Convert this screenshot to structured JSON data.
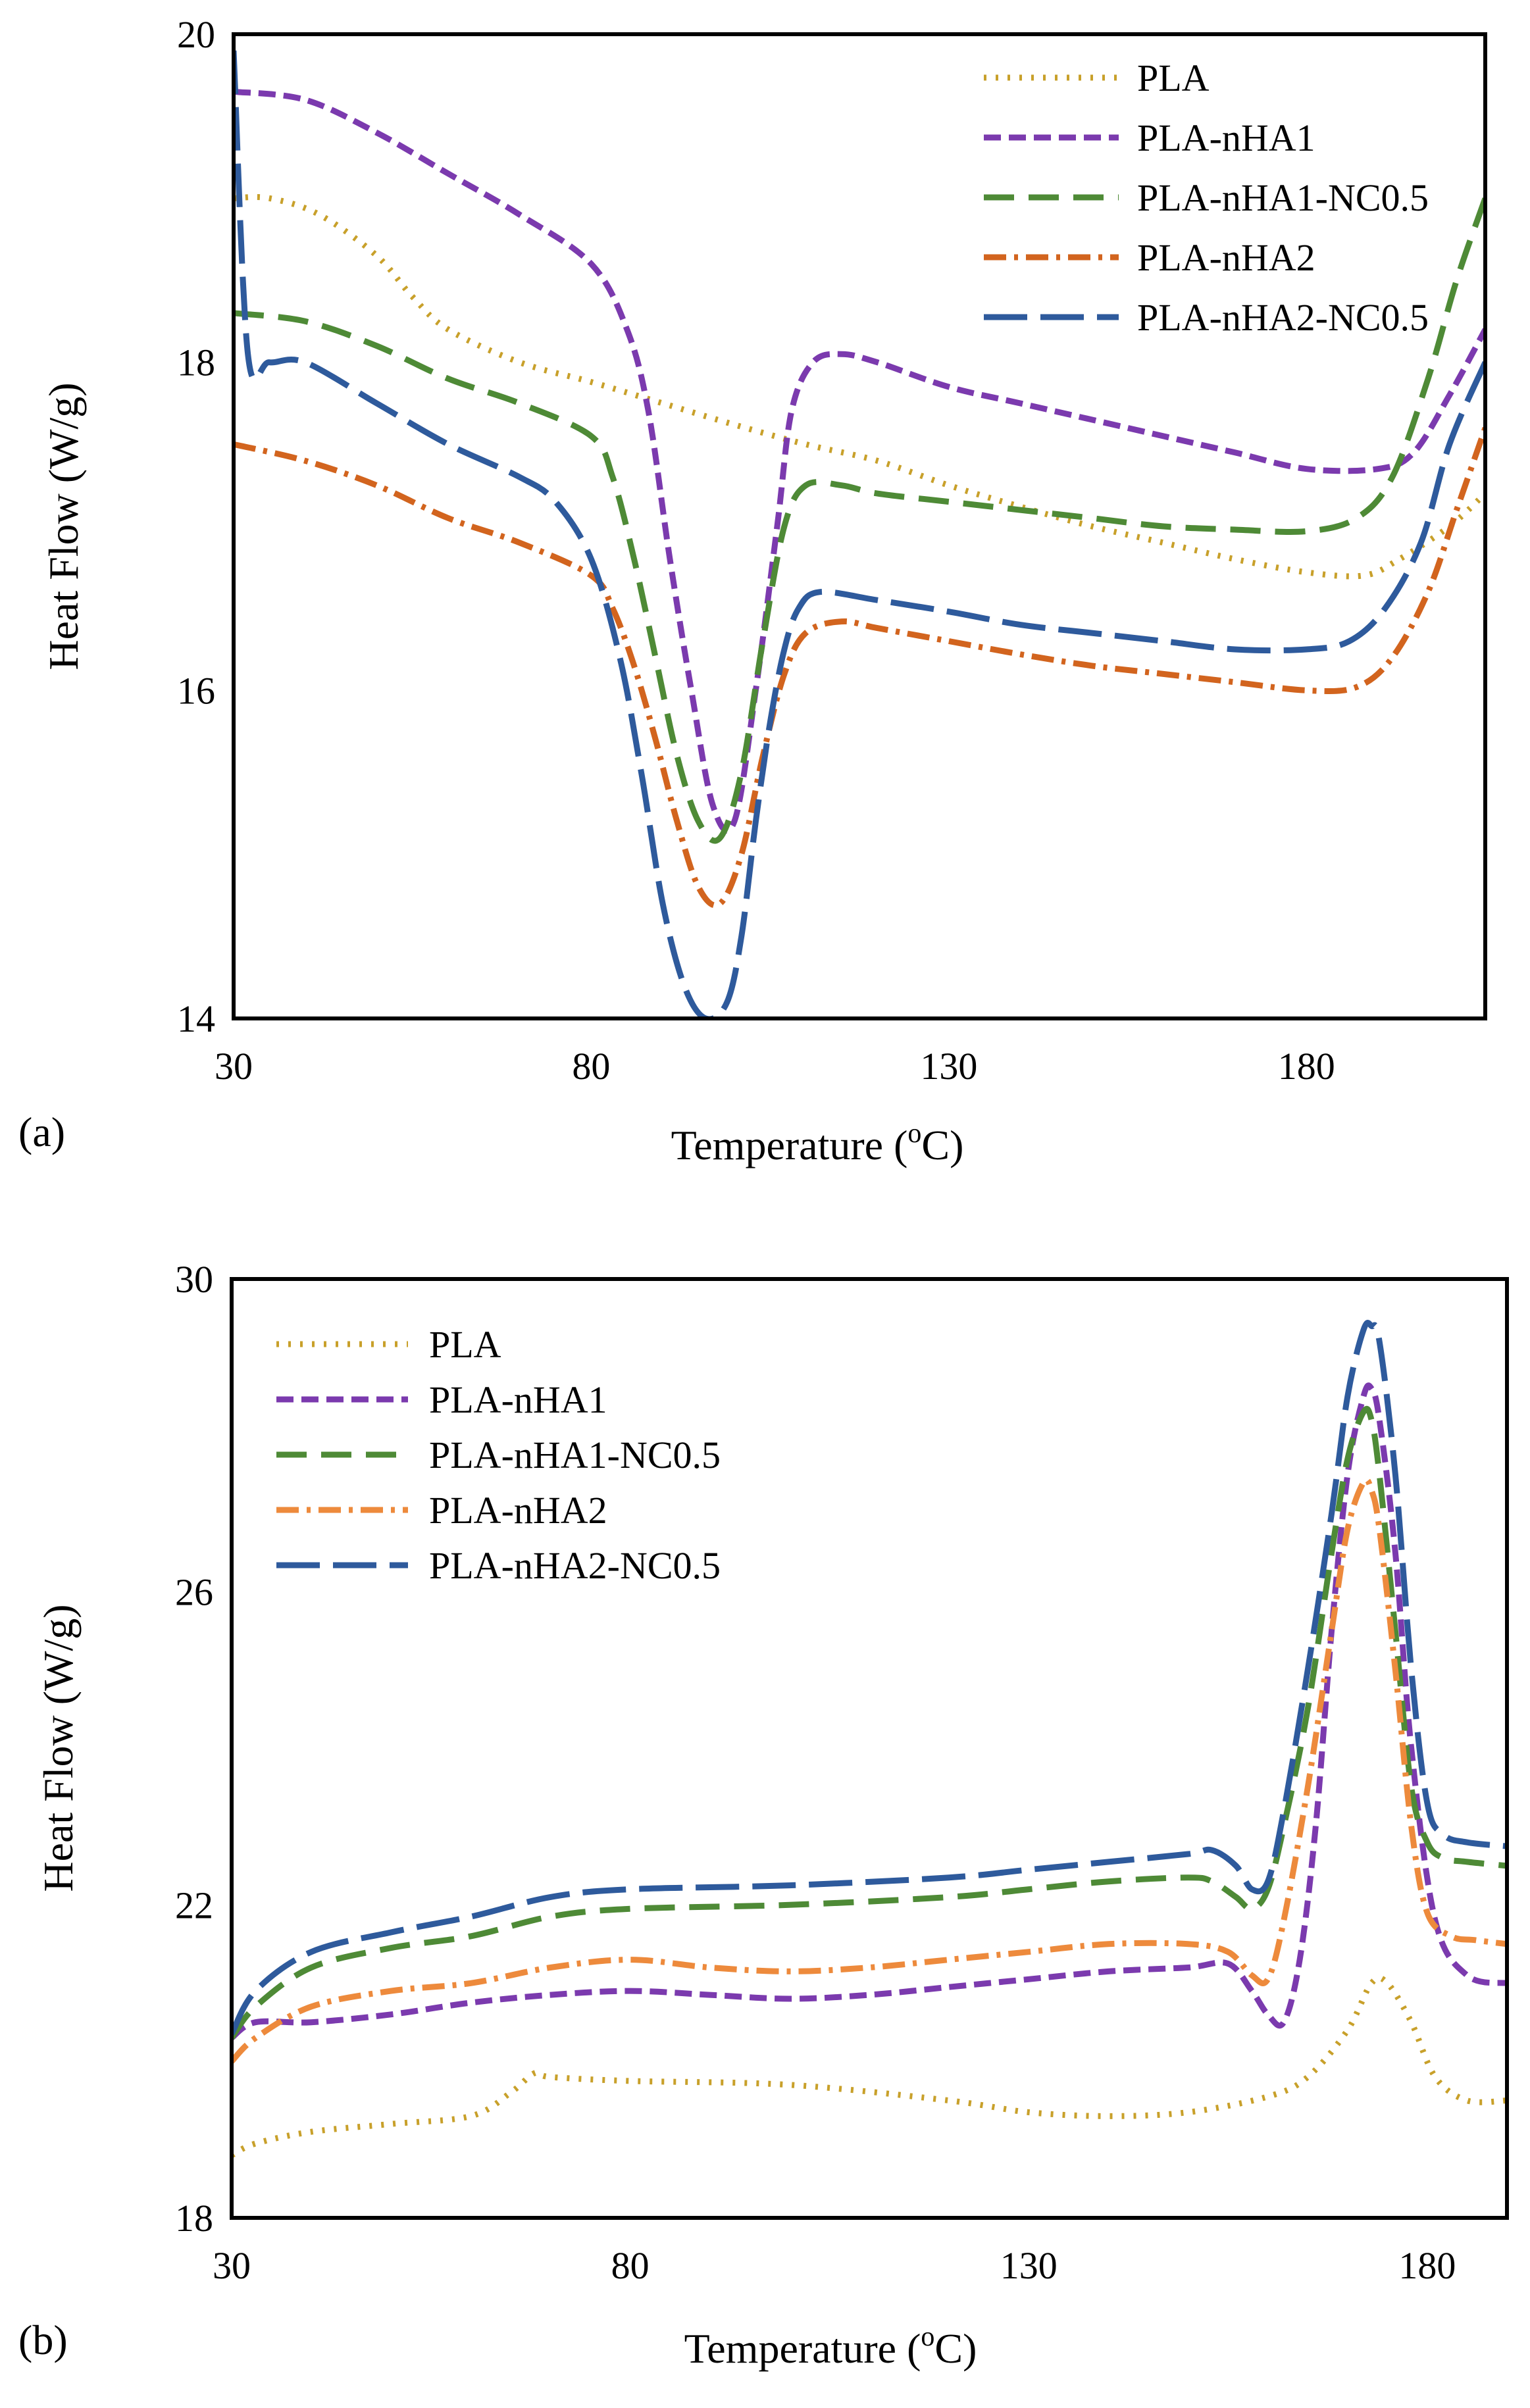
{
  "figure": {
    "panels": [
      "(a)",
      "(b)"
    ]
  },
  "styles": {
    "PLA": {
      "color": "#C8A02A",
      "dash": "4 14"
    },
    "PLA-nHA1": {
      "color": "#7B3AAE",
      "dash": "26 12"
    },
    "PLA-nHA1-NC0.5": {
      "color": "#4E8A36",
      "dash": "46 22"
    },
    "PLA-nHA2a": {
      "color": "#D2641E",
      "dash": "34 12 6 12"
    },
    "PLA-nHA2b": {
      "color": "#ED8A3C",
      "dash": "34 12 6 12"
    },
    "PLA-nHA2-NC0.5": {
      "color": "#2E5A9C",
      "dash": "66 20"
    }
  },
  "chart_data": [
    {
      "type": "line",
      "panel": "(a)",
      "xlabel": "Temperature (oC)",
      "ylabel": "Heat Flow (W/g)",
      "xlim": [
        30,
        205
      ],
      "ylim": [
        14,
        20
      ],
      "xticks": [
        30,
        80,
        130,
        180
      ],
      "yticks": [
        14,
        16,
        18,
        20
      ],
      "legend_position": "top-right",
      "series": [
        {
          "name": "PLA",
          "style": "PLA",
          "x": [
            30,
            35,
            42,
            50,
            55,
            60,
            70,
            80,
            90,
            100,
            110,
            120,
            130,
            140,
            150,
            160,
            170,
            180,
            188,
            193,
            200,
            205
          ],
          "y": [
            19.0,
            19.0,
            18.9,
            18.65,
            18.4,
            18.2,
            18.0,
            17.88,
            17.75,
            17.62,
            17.5,
            17.4,
            17.25,
            17.12,
            17.0,
            16.9,
            16.8,
            16.72,
            16.7,
            16.8,
            17.0,
            17.2
          ]
        },
        {
          "name": "PLA-nHA1",
          "style": "PLA-nHA1",
          "x": [
            30,
            40,
            50,
            60,
            70,
            80,
            85,
            88,
            91,
            94,
            97,
            100,
            103,
            106,
            108,
            111,
            115,
            120,
            130,
            140,
            150,
            160,
            170,
            180,
            190,
            195,
            200,
            205
          ],
          "y": [
            19.65,
            19.6,
            19.4,
            19.15,
            18.9,
            18.6,
            18.2,
            17.7,
            16.8,
            16.0,
            15.3,
            15.2,
            16.0,
            17.0,
            17.7,
            18.0,
            18.05,
            18.0,
            17.85,
            17.75,
            17.65,
            17.55,
            17.45,
            17.35,
            17.35,
            17.45,
            17.8,
            18.2
          ]
        },
        {
          "name": "PLA-nHA1-NC0.5",
          "style": "PLA-nHA1-NC0.5",
          "x": [
            30,
            40,
            50,
            60,
            70,
            80,
            83,
            86,
            89,
            92,
            95,
            98,
            101,
            104,
            107,
            110,
            115,
            120,
            130,
            140,
            150,
            160,
            170,
            180,
            187,
            192,
            197,
            201,
            205
          ],
          "y": [
            18.3,
            18.25,
            18.1,
            17.9,
            17.75,
            17.55,
            17.3,
            16.8,
            16.2,
            15.6,
            15.2,
            15.1,
            15.5,
            16.3,
            17.0,
            17.25,
            17.25,
            17.2,
            17.15,
            17.1,
            17.05,
            17.0,
            16.98,
            16.97,
            17.05,
            17.3,
            17.9,
            18.5,
            19.0
          ]
        },
        {
          "name": "PLA-nHA2",
          "style": "PLA-nHA2a",
          "x": [
            30,
            40,
            50,
            60,
            70,
            80,
            83,
            86,
            89,
            92,
            95,
            98,
            101,
            104,
            107,
            110,
            115,
            120,
            130,
            140,
            150,
            160,
            170,
            180,
            187,
            192,
            197,
            201,
            205
          ],
          "y": [
            17.5,
            17.4,
            17.25,
            17.05,
            16.9,
            16.7,
            16.5,
            16.15,
            15.7,
            15.2,
            14.8,
            14.7,
            15.0,
            15.6,
            16.1,
            16.35,
            16.42,
            16.38,
            16.3,
            16.22,
            16.15,
            16.1,
            16.05,
            16.0,
            16.02,
            16.2,
            16.6,
            17.1,
            17.6
          ]
        },
        {
          "name": "PLA-nHA2-NC0.5",
          "style": "PLA-nHA2-NC0.5",
          "x": [
            30,
            32,
            35,
            40,
            50,
            60,
            70,
            75,
            80,
            84,
            87,
            90,
            93,
            96,
            99,
            101,
            103,
            105,
            107,
            109,
            112,
            120,
            130,
            140,
            150,
            160,
            170,
            180,
            186,
            191,
            196,
            200,
            205
          ],
          "y": [
            19.9,
            18.05,
            18.0,
            18.0,
            17.75,
            17.5,
            17.3,
            17.15,
            16.8,
            16.2,
            15.5,
            14.7,
            14.2,
            14.0,
            14.1,
            14.5,
            15.2,
            15.8,
            16.25,
            16.5,
            16.6,
            16.55,
            16.48,
            16.4,
            16.35,
            16.3,
            16.25,
            16.25,
            16.3,
            16.5,
            16.9,
            17.5,
            18.0
          ]
        }
      ]
    },
    {
      "type": "line",
      "panel": "(b)",
      "xlabel": "Temperature (oC)",
      "ylabel": "Heat Flow (W/g)",
      "xlim": [
        30,
        190
      ],
      "ylim": [
        18,
        30
      ],
      "xticks": [
        30,
        80,
        130,
        180
      ],
      "yticks": [
        18,
        22,
        26,
        30
      ],
      "legend_position": "top-left",
      "series": [
        {
          "name": "PLA",
          "style": "PLA",
          "x": [
            30,
            33,
            40,
            50,
            60,
            65,
            68,
            70,
            80,
            100,
            120,
            130,
            140,
            150,
            160,
            165,
            170,
            173,
            175,
            178,
            181,
            185,
            190
          ],
          "y": [
            18.8,
            18.95,
            19.1,
            19.2,
            19.3,
            19.6,
            19.85,
            19.8,
            19.75,
            19.7,
            19.5,
            19.35,
            19.3,
            19.35,
            19.55,
            19.8,
            20.4,
            21.0,
            21.0,
            20.5,
            19.8,
            19.5,
            19.5
          ]
        },
        {
          "name": "PLA-nHA1",
          "style": "PLA-nHA1",
          "x": [
            30,
            33,
            40,
            50,
            60,
            70,
            80,
            90,
            100,
            110,
            120,
            130,
            140,
            150,
            155,
            158,
            160,
            162,
            164,
            166,
            168,
            170,
            172,
            173,
            174,
            176,
            178,
            181,
            185,
            190
          ],
          "y": [
            20.3,
            20.5,
            20.5,
            20.6,
            20.75,
            20.85,
            20.9,
            20.85,
            20.8,
            20.85,
            20.95,
            21.05,
            21.15,
            21.2,
            21.25,
            20.9,
            20.6,
            20.5,
            21.3,
            23.0,
            25.5,
            27.5,
            28.5,
            28.6,
            28.2,
            26.5,
            24.0,
            21.8,
            21.1,
            21.0
          ]
        },
        {
          "name": "PLA-nHA1-NC0.5",
          "style": "PLA-nHA1-NC0.5",
          "x": [
            30,
            33,
            40,
            50,
            60,
            70,
            80,
            100,
            120,
            130,
            140,
            150,
            153,
            156,
            158,
            160,
            162,
            165,
            168,
            170,
            172,
            173,
            174,
            176,
            178,
            180,
            182,
            185,
            190
          ],
          "y": [
            20.3,
            20.7,
            21.2,
            21.45,
            21.6,
            21.85,
            21.95,
            22.0,
            22.1,
            22.2,
            22.3,
            22.35,
            22.3,
            22.1,
            21.95,
            22.2,
            23.0,
            24.5,
            26.5,
            27.7,
            28.3,
            28.2,
            27.5,
            25.5,
            23.5,
            22.8,
            22.6,
            22.55,
            22.5
          ]
        },
        {
          "name": "PLA-nHA2",
          "style": "PLA-nHA2b",
          "x": [
            30,
            33,
            40,
            50,
            60,
            70,
            80,
            90,
            100,
            110,
            120,
            130,
            140,
            150,
            155,
            158,
            160,
            162,
            165,
            168,
            170,
            172,
            173,
            174,
            176,
            178,
            180,
            183,
            186,
            190
          ],
          "y": [
            20.0,
            20.3,
            20.7,
            20.9,
            21.0,
            21.2,
            21.3,
            21.2,
            21.15,
            21.2,
            21.3,
            21.4,
            21.5,
            21.5,
            21.4,
            21.1,
            21.05,
            21.8,
            23.5,
            25.5,
            26.8,
            27.4,
            27.3,
            26.8,
            25.0,
            23.0,
            21.9,
            21.6,
            21.55,
            21.5
          ]
        },
        {
          "name": "PLA-nHA2-NC0.5",
          "style": "PLA-nHA2-NC0.5",
          "x": [
            30,
            33,
            40,
            50,
            60,
            70,
            80,
            100,
            120,
            130,
            140,
            150,
            153,
            156,
            158,
            160,
            162,
            165,
            168,
            170,
            172,
            173,
            174,
            176,
            178,
            180,
            182,
            185,
            190
          ],
          "y": [
            20.35,
            20.9,
            21.4,
            21.65,
            21.85,
            22.1,
            22.2,
            22.25,
            22.35,
            22.45,
            22.55,
            22.65,
            22.7,
            22.5,
            22.2,
            22.3,
            23.2,
            25.0,
            27.0,
            28.5,
            29.35,
            29.4,
            29.2,
            27.5,
            25.0,
            23.3,
            22.9,
            22.8,
            22.75
          ]
        }
      ]
    }
  ]
}
